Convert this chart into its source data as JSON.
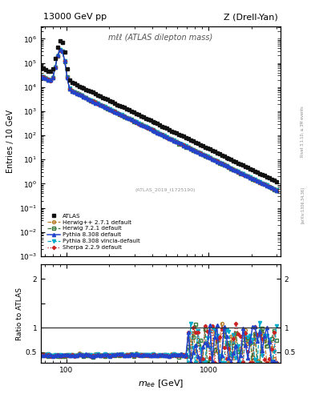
{
  "title_left": "13000 GeV pp",
  "title_right": "Z (Drell-Yan)",
  "main_annotation": "mℓℓ (ATLAS dilepton mass)",
  "atlas_label": "(ATLAS_2019_I1725190)",
  "rivet_label": "Rivet 3.1.10, ≥ 3M events",
  "arxiv_label": "[arXiv:1306.34,36]",
  "ylabel_main": "Entries / 10 GeV",
  "ylabel_ratio": "Ratio to ATLAS",
  "xlabel": "m_{ee} [GeV]",
  "ylim_main_log": [
    -3,
    6.5
  ],
  "ylim_ratio": [
    0.28,
    2.3
  ],
  "xlim": [
    66,
    3200
  ],
  "ratio_base": 0.44,
  "series": [
    {
      "label": "ATLAS",
      "color": "#111111",
      "marker": "s",
      "ls": "none",
      "lw": 1.2,
      "ms": 3.0,
      "filled": true,
      "zorder": 10
    },
    {
      "label": "Herwig++ 2.7.1 default",
      "color": "#b87c2a",
      "marker": "o",
      "ls": "--",
      "lw": 0.9,
      "ms": 2.8,
      "filled": false,
      "zorder": 5
    },
    {
      "label": "Herwig 7.2.1 default",
      "color": "#3a7a3a",
      "marker": "s",
      "ls": "--",
      "lw": 0.9,
      "ms": 2.8,
      "filled": false,
      "zorder": 5
    },
    {
      "label": "Pythia 8.308 default",
      "color": "#2244cc",
      "marker": "^",
      "ls": "-",
      "lw": 1.1,
      "ms": 3.0,
      "filled": true,
      "zorder": 6
    },
    {
      "label": "Pythia 8.308 vincia-default",
      "color": "#00aacc",
      "marker": "v",
      "ls": "--",
      "lw": 0.9,
      "ms": 3.0,
      "filled": true,
      "zorder": 5
    },
    {
      "label": "Sherpa 2.2.9 default",
      "color": "#cc2222",
      "marker": "D",
      "ls": ":",
      "lw": 0.9,
      "ms": 2.2,
      "filled": true,
      "zorder": 5
    }
  ],
  "background_color": "#ffffff"
}
